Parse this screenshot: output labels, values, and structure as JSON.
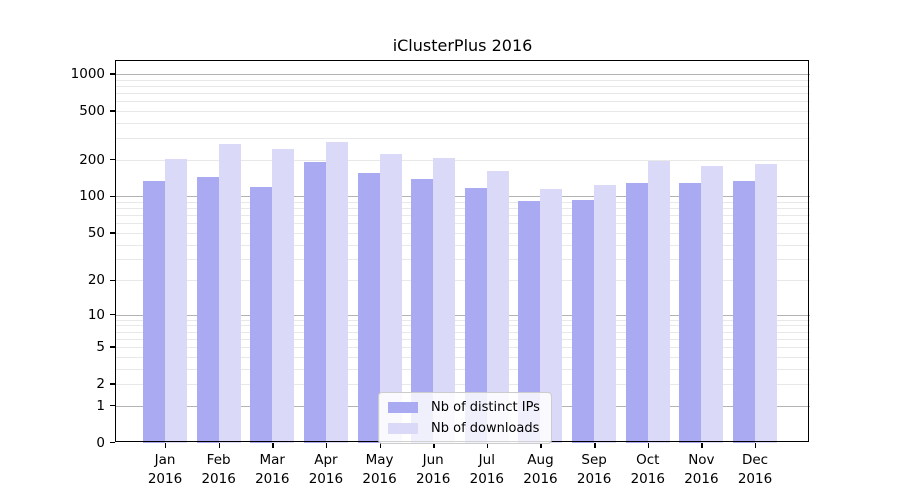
{
  "chart_data": {
    "type": "bar",
    "title": "iClusterPlus 2016",
    "categories": [
      "Jan",
      "Feb",
      "Mar",
      "Apr",
      "May",
      "Jun",
      "Jul",
      "Aug",
      "Sep",
      "Oct",
      "Nov",
      "Dec"
    ],
    "x_tick_year": "2016",
    "series": [
      {
        "name": "Nb of distinct IPs",
        "color": "#aaaaf2",
        "values": [
          135,
          143,
          120,
          190,
          156,
          139,
          118,
          92,
          94,
          130,
          129,
          135
        ]
      },
      {
        "name": "Nb of downloads",
        "color": "#dadaf8",
        "values": [
          202,
          268,
          246,
          277,
          224,
          207,
          163,
          115,
          124,
          194,
          176,
          185
        ]
      }
    ],
    "y_axis": {
      "scale": "log10(1+v)",
      "tick_values": [
        0,
        1,
        2,
        5,
        10,
        20,
        50,
        100,
        200,
        500,
        1000
      ],
      "top_value": 1300
    },
    "grid": {
      "major_line_values": [
        1,
        10,
        100,
        1000
      ],
      "major_color": "#b3b3b3",
      "minor_color": "#e8e8e8"
    },
    "legend": {
      "position": "bottom-center"
    }
  }
}
